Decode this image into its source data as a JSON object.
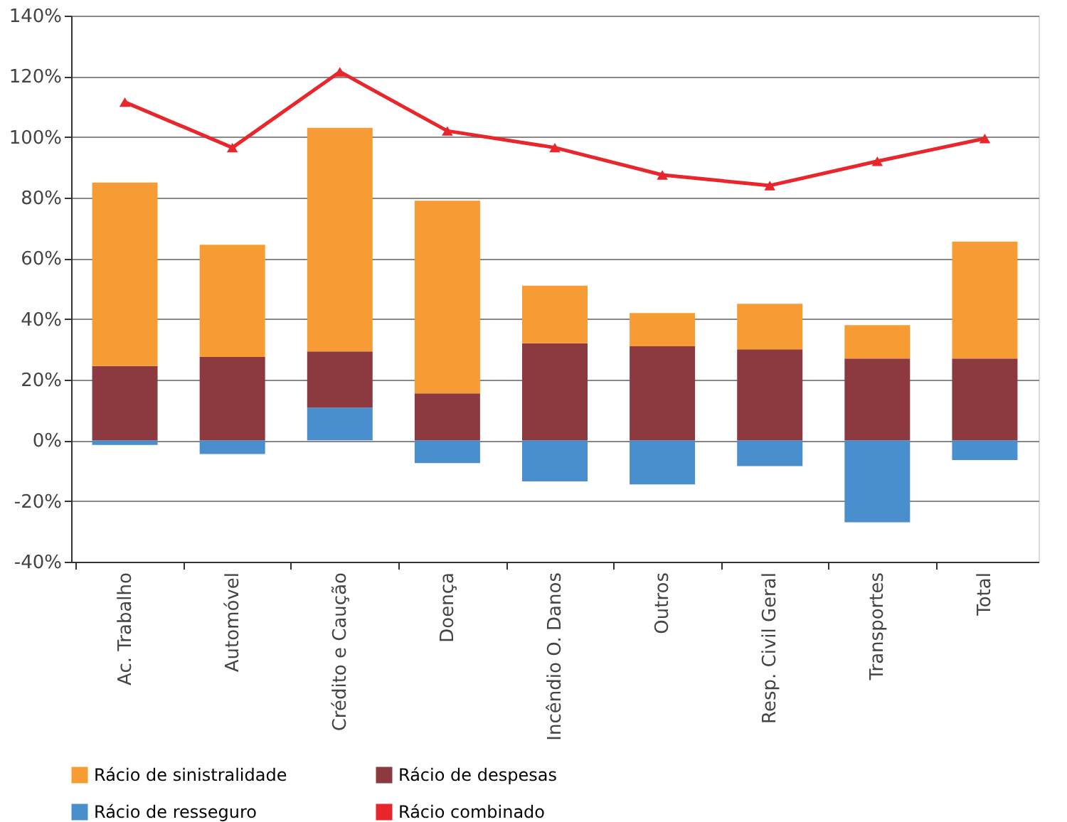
{
  "chart_data": {
    "type": "bar",
    "stacked": true,
    "categories": [
      "Ac. Trabalho",
      "Automóvel",
      "Crédito e Caução",
      "Doença",
      "Incêndio O. Danos",
      "Outros",
      "Resp. Civil Geral",
      "Transportes",
      "Total"
    ],
    "series": [
      {
        "name": "Rácio de resseguro",
        "color": "#4a8fcd",
        "values": [
          -1.5,
          -4.5,
          10.8,
          -7.5,
          -13.5,
          -14.5,
          -8.5,
          -27,
          -6.5
        ]
      },
      {
        "name": "Rácio de despesas",
        "color": "#8c3a40",
        "values": [
          24.5,
          27.5,
          18.5,
          15.5,
          32,
          31,
          30,
          27,
          27
        ]
      },
      {
        "name": "Rácio de sinistralidade",
        "color": "#f79b35",
        "values": [
          60.5,
          37,
          73.7,
          63.5,
          19,
          11,
          15,
          11,
          38.5
        ]
      },
      {
        "name": "Rácio combinado",
        "type": "line",
        "color": "#e8262b",
        "marker": "triangle",
        "values": [
          111.5,
          96.5,
          121.5,
          102,
          96.5,
          87.5,
          84,
          92,
          99.5
        ]
      }
    ],
    "ylim": [
      -40,
      140
    ],
    "yticks": [
      {
        "value": -40,
        "label": "-40%"
      },
      {
        "value": -20,
        "label": "-20%"
      },
      {
        "value": 0,
        "label": "0%"
      },
      {
        "value": 20,
        "label": "20%"
      },
      {
        "value": 40,
        "label": "40%"
      },
      {
        "value": 60,
        "label": "60%"
      },
      {
        "value": 80,
        "label": "80%"
      },
      {
        "value": 100,
        "label": "100%"
      },
      {
        "value": 120,
        "label": "120%"
      },
      {
        "value": 140,
        "label": "140%"
      }
    ],
    "grid": "y",
    "legend": "bottom"
  }
}
